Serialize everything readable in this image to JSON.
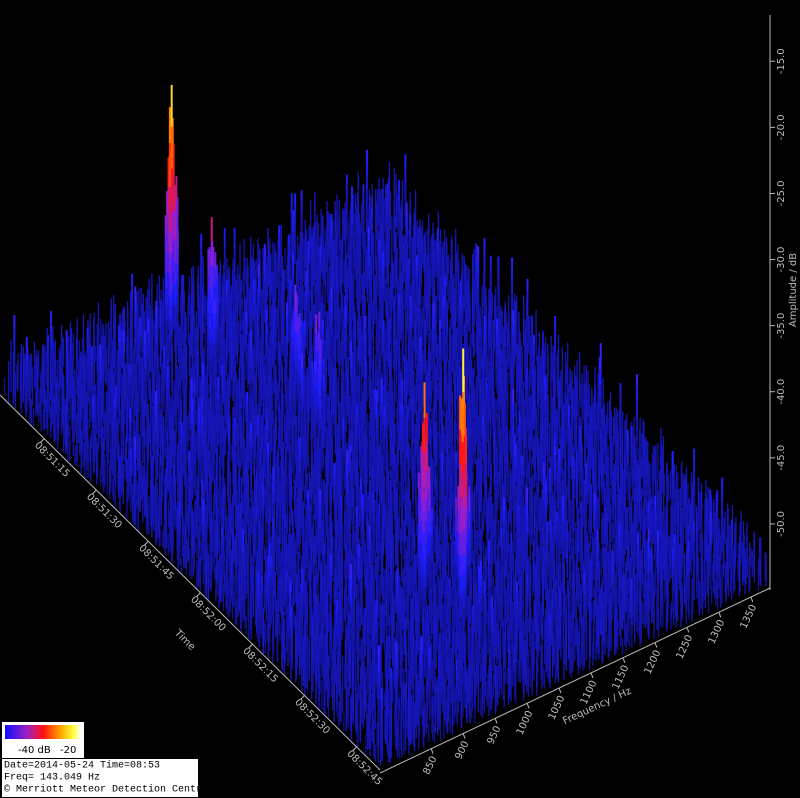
{
  "chart_data": {
    "type": "waterfall3d",
    "amplitude_axis": {
      "label": "Amplitude / dB",
      "ylim": [
        -55,
        -11.5
      ],
      "yticks": [
        {
          "value": -15,
          "label": "-15.0"
        },
        {
          "value": -20,
          "label": "-20.0"
        },
        {
          "value": -25,
          "label": "-25.0"
        },
        {
          "value": -30,
          "label": "-30.0"
        },
        {
          "value": -35,
          "label": "-35.0"
        },
        {
          "value": -40,
          "label": "-40.0"
        },
        {
          "value": -45,
          "label": "-45.0"
        },
        {
          "value": -50,
          "label": "-50.0"
        }
      ]
    },
    "time_axis": {
      "label": "Time",
      "categories": [
        "08:51:15",
        "08:51:30",
        "08:51:45",
        "08:52:00",
        "08:52:15",
        "08:52:30",
        "08:52:45"
      ]
    },
    "frequency_axis": {
      "label": "Frequency / Hz",
      "xlim": [
        770,
        1380
      ],
      "xticks": [
        850,
        900,
        950,
        1000,
        1050,
        1100,
        1150,
        1200,
        1250,
        1300,
        1350
      ]
    },
    "colorbar": {
      "labels": [
        "-40 dB",
        "-20"
      ]
    },
    "info": [
      "Date=2014-05-24 Time=08:53",
      "Freq= 143.049 Hz",
      "© Merriott Meteor Detection Centre"
    ]
  }
}
